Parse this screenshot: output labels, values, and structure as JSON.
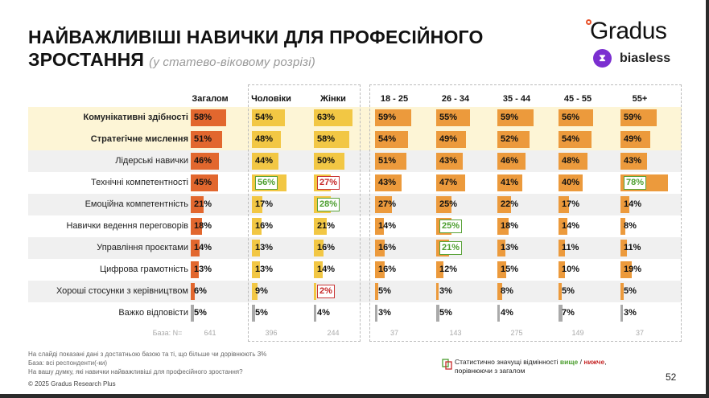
{
  "title": "НАЙВАЖЛИВІШІ НАВИЧКИ ДЛЯ ПРОФЕСІЙНОГО",
  "title_line2": "ЗРОСТАННЯ",
  "subtitle": "(у статево-віковому розрізі)",
  "logo": {
    "brand": "Gradus",
    "partner": "biasless"
  },
  "colors": {
    "total": "#e2672e",
    "gender": "#f2c744",
    "age": "#ec9a3c",
    "none": "#aaaaaa",
    "higher": "#4c9e2f",
    "lower": "#c62828"
  },
  "columns": [
    "Загалом",
    "Чоловіки",
    "Жінки",
    "18 - 25",
    "26 - 34",
    "35 - 44",
    "45 - 55",
    "55+"
  ],
  "base_label": "База: N=",
  "bases": [
    "641",
    "396",
    "244",
    "37",
    "143",
    "275",
    "149",
    "37"
  ],
  "rows": [
    {
      "label": "Комунікативні здібності",
      "bold": true,
      "values": [
        58,
        54,
        63,
        59,
        55,
        59,
        56,
        59
      ],
      "flags": [
        "",
        "",
        "",
        "",
        "",
        "",
        "",
        ""
      ]
    },
    {
      "label": "Стратегічне мислення",
      "bold": true,
      "values": [
        51,
        48,
        58,
        54,
        49,
        52,
        54,
        49
      ],
      "flags": [
        "",
        "",
        "",
        "",
        "",
        "",
        "",
        ""
      ]
    },
    {
      "label": "Лідерські навички",
      "values": [
        46,
        44,
        50,
        51,
        43,
        46,
        48,
        43
      ],
      "flags": [
        "",
        "",
        "",
        "",
        "",
        "",
        "",
        ""
      ]
    },
    {
      "label": "Технічні компетентності",
      "values": [
        45,
        56,
        27,
        43,
        47,
        41,
        40,
        78
      ],
      "flags": [
        "",
        "hi",
        "lo",
        "",
        "",
        "",
        "",
        "hi"
      ]
    },
    {
      "label": "Емоційна компетентність",
      "values": [
        21,
        17,
        28,
        27,
        25,
        22,
        17,
        14
      ],
      "flags": [
        "",
        "",
        "hi",
        "",
        "",
        "",
        "",
        ""
      ]
    },
    {
      "label": "Навички ведення переговорів",
      "values": [
        18,
        16,
        21,
        14,
        25,
        18,
        14,
        8
      ],
      "flags": [
        "",
        "",
        "",
        "",
        "hi",
        "",
        "",
        ""
      ]
    },
    {
      "label": "Управління проєктами",
      "values": [
        14,
        13,
        16,
        16,
        21,
        13,
        11,
        11
      ],
      "flags": [
        "",
        "",
        "",
        "",
        "hi",
        "",
        "",
        ""
      ]
    },
    {
      "label": "Цифрова грамотність",
      "values": [
        13,
        13,
        14,
        16,
        12,
        15,
        10,
        19
      ],
      "flags": [
        "",
        "",
        "",
        "",
        "",
        "",
        "",
        ""
      ]
    },
    {
      "label": "Хороші стосунки з керівництвом",
      "values": [
        6,
        9,
        2,
        5,
        3,
        8,
        5,
        5
      ],
      "flags": [
        "",
        "",
        "lo",
        "",
        "",
        "",
        "",
        ""
      ]
    },
    {
      "label": "Важко відповісти",
      "none": true,
      "values": [
        5,
        5,
        4,
        3,
        5,
        4,
        7,
        3
      ],
      "flags": [
        "",
        "",
        "",
        "",
        "",
        "",
        "",
        ""
      ]
    }
  ],
  "notes": [
    "На слайді показані дані з достатньою базою та ті, що більше чи дорівнюють 3%",
    "База: всі респонденти(-ки)",
    "На вашу думку, які навички найважливіші для професійного зростання?"
  ],
  "copyright": "© 2025 Gradus Research Plus",
  "legend": {
    "text": "Статистично значущі відмінності",
    "higher": "вище",
    "sep": " / ",
    "lower": "нижче",
    "suffix": ",",
    "line2": "порівнюючи з загалом"
  },
  "page": "52"
}
